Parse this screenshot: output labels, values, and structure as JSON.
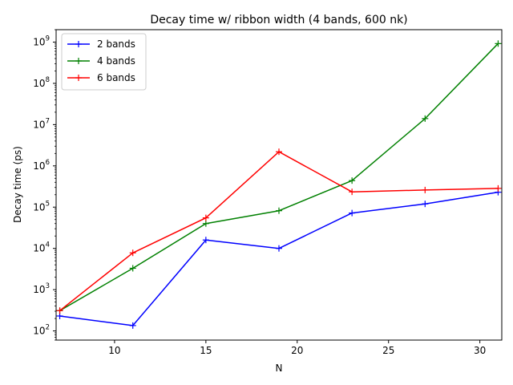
{
  "chart_data": {
    "type": "line",
    "title": "Decay time w/ ribbon width (4 bands, 600 nk)",
    "xlabel": "N",
    "ylabel": "Decay time (ps)",
    "xlim": [
      6.8,
      31.2
    ],
    "ylim": [
      60,
      2000000000
    ],
    "yscale": "log",
    "x_ticks": [
      10,
      15,
      20,
      25,
      30
    ],
    "x_tick_labels": [
      "10",
      "15",
      "20",
      "25",
      "30"
    ],
    "y_ticks": [
      100,
      1000,
      10000,
      100000,
      1000000,
      10000000,
      100000000,
      1000000000
    ],
    "y_tick_base": "10",
    "y_tick_exponents": [
      "2",
      "3",
      "4",
      "5",
      "6",
      "7",
      "8",
      "9"
    ],
    "grid": false,
    "legend_position": "top-left",
    "x": [
      7,
      11,
      15,
      19,
      23,
      27,
      31
    ],
    "series": [
      {
        "name": "2 bands",
        "color": "#0000ff",
        "values": [
          230,
          135,
          16000,
          10000,
          72000,
          120000,
          230000
        ]
      },
      {
        "name": "4 bands",
        "color": "#008000",
        "values": [
          310,
          3300,
          40000,
          82000,
          440000,
          14000000,
          920000000
        ]
      },
      {
        "name": "6 bands",
        "color": "#ff0000",
        "values": [
          310,
          7800,
          55000,
          2200000,
          235000,
          260000,
          285000
        ]
      }
    ]
  }
}
